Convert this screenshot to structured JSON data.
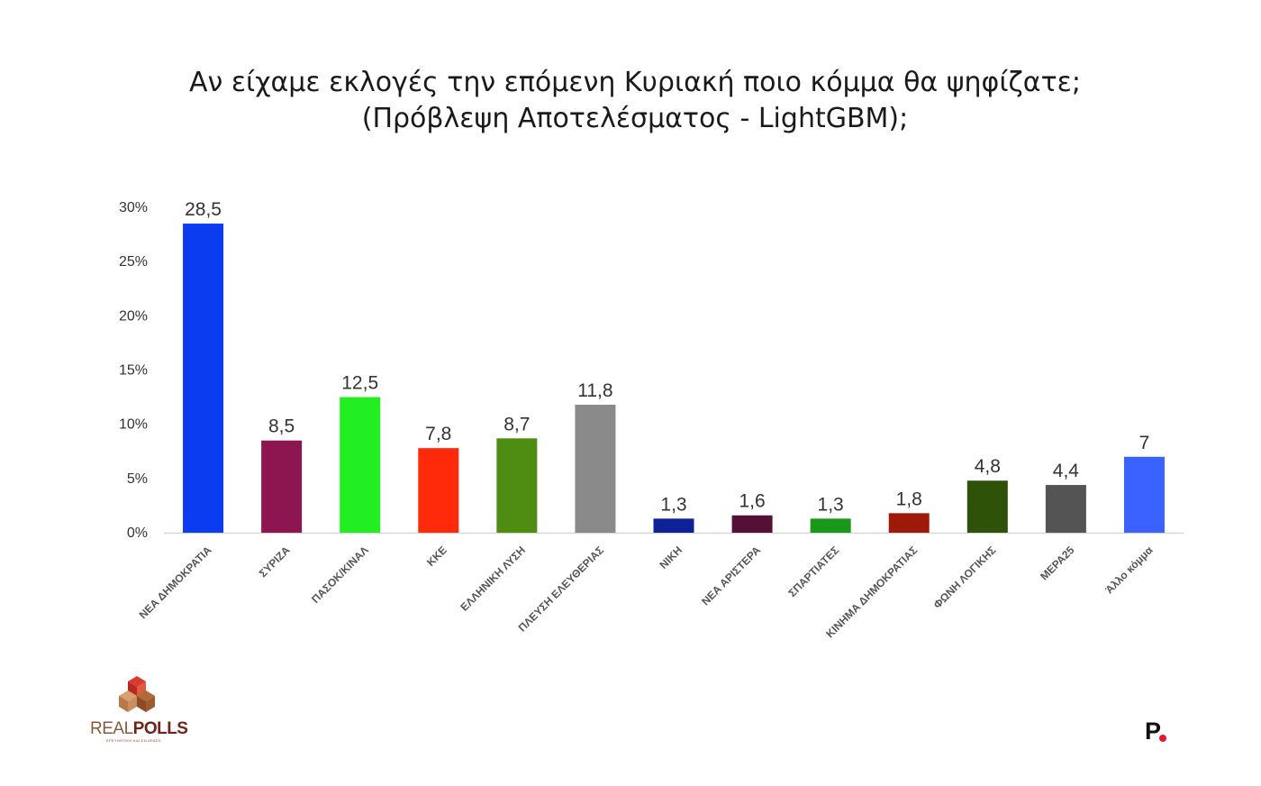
{
  "chart_data": {
    "type": "bar",
    "title": [
      "Αν είχαμε εκλογές την επόμενη Κυριακή ποιο κόμμα θα ψηφίζατε;",
      "(Πρόβλεψη Αποτελέσματος - LightGBM);"
    ],
    "categories": [
      "ΝΕΑ ΔΗΜΟΚΡΑΤΙΑ",
      "ΣΥΡΙΖΑ",
      "ΠΑΣΟΚ/ΚΙΝΑΛ",
      "ΚΚΕ",
      "ΕΛΛΗΝΙΚΗ ΛΥΣΗ",
      "ΠΛΕΥΣΗ ΕΛΕΥΘΕΡΙΑΣ",
      "ΝΙΚΗ",
      "ΝΕΑ ΑΡΙΣΤΕΡΑ",
      "ΣΠΑΡΤΙΑΤΕΣ",
      "ΚΙΝΗΜΑ ΔΗΜΟΚΡΑΤΙΑΣ",
      "ΦΩΝΗ ΛΟΓΙΚΗΣ",
      "ΜΕΡΑ25",
      "Άλλο κόμμα"
    ],
    "values": [
      28.5,
      8.5,
      12.5,
      7.8,
      8.7,
      11.8,
      1.3,
      1.6,
      1.3,
      1.8,
      4.8,
      4.4,
      7
    ],
    "value_labels": [
      "28,5",
      "8,5",
      "12,5",
      "7,8",
      "8,7",
      "11,8",
      "1,3",
      "1,6",
      "1,3",
      "1,8",
      "4,8",
      "4,4",
      "7"
    ],
    "colors": [
      "#0b3cf0",
      "#8e1650",
      "#22ef22",
      "#ff2a0a",
      "#4e8c12",
      "#8a8a8a",
      "#0d2198",
      "#571035",
      "#1a981a",
      "#9e1a08",
      "#2e5208",
      "#545454",
      "#3a62ff"
    ],
    "yticks": [
      "0%",
      "5%",
      "10%",
      "15%",
      "20%",
      "25%",
      "30%"
    ],
    "ylim": [
      0,
      30
    ],
    "xlabel": "",
    "ylabel": "",
    "grid": false,
    "legend": "none"
  },
  "logos": {
    "realpolls_part1": "REAL",
    "realpolls_part2": "POLLS",
    "realpolls_tagline": "ΕΡΕΥΝΗΤΙΚΗ ΚΑΙ ΕΝ ΔΡΑΣΗ",
    "publisher_mark": "P"
  }
}
